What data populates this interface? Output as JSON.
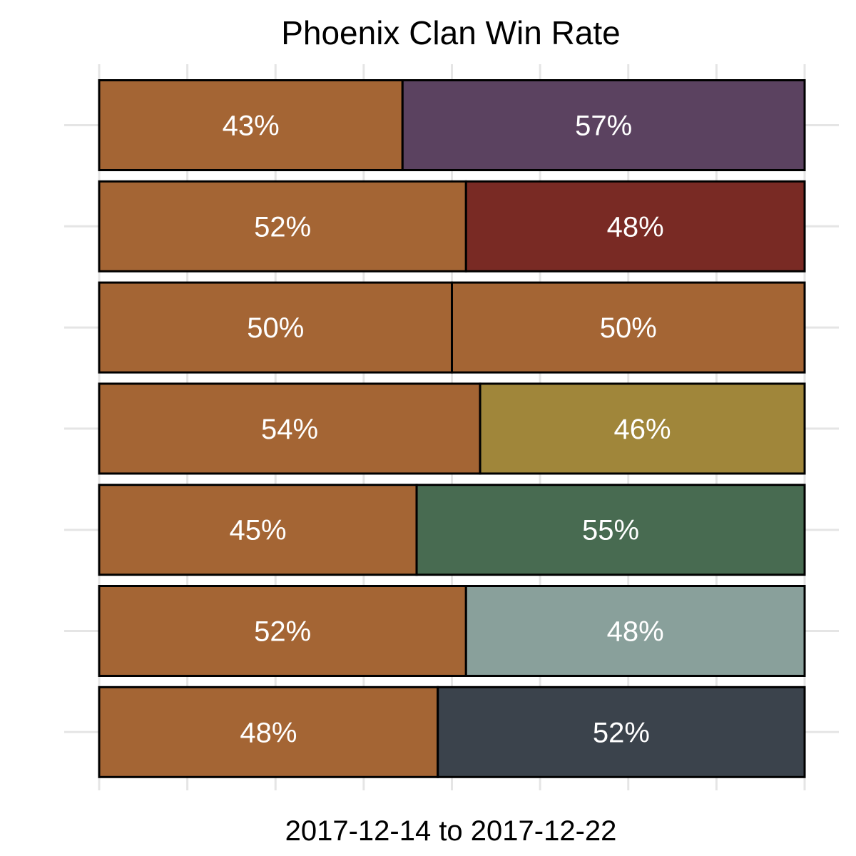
{
  "chart_data": {
    "type": "bar",
    "orientation": "horizontal",
    "stacked": true,
    "title": "Phoenix Clan Win Rate",
    "xlabel": "2017-12-14 to 2017-12-22",
    "ylabel": "",
    "xlim": [
      0,
      100
    ],
    "grid": true,
    "legend": "none",
    "rows": [
      {
        "segments": [
          {
            "value": 43,
            "label": "43%",
            "color": "#A46534"
          },
          {
            "value": 57,
            "label": "57%",
            "color": "#5B4260"
          }
        ]
      },
      {
        "segments": [
          {
            "value": 52,
            "label": "52%",
            "color": "#A46534"
          },
          {
            "value": 48,
            "label": "48%",
            "color": "#792A24"
          }
        ]
      },
      {
        "segments": [
          {
            "value": 50,
            "label": "50%",
            "color": "#A46534"
          },
          {
            "value": 50,
            "label": "50%",
            "color": "#A46534"
          }
        ]
      },
      {
        "segments": [
          {
            "value": 54,
            "label": "54%",
            "color": "#A46534"
          },
          {
            "value": 46,
            "label": "46%",
            "color": "#A0863A"
          }
        ]
      },
      {
        "segments": [
          {
            "value": 45,
            "label": "45%",
            "color": "#A46534"
          },
          {
            "value": 55,
            "label": "55%",
            "color": "#486B51"
          }
        ]
      },
      {
        "segments": [
          {
            "value": 52,
            "label": "52%",
            "color": "#A46534"
          },
          {
            "value": 48,
            "label": "48%",
            "color": "#89A09B"
          }
        ]
      },
      {
        "segments": [
          {
            "value": 48,
            "label": "48%",
            "color": "#A46534"
          },
          {
            "value": 52,
            "label": "52%",
            "color": "#3B434C"
          }
        ]
      }
    ]
  }
}
